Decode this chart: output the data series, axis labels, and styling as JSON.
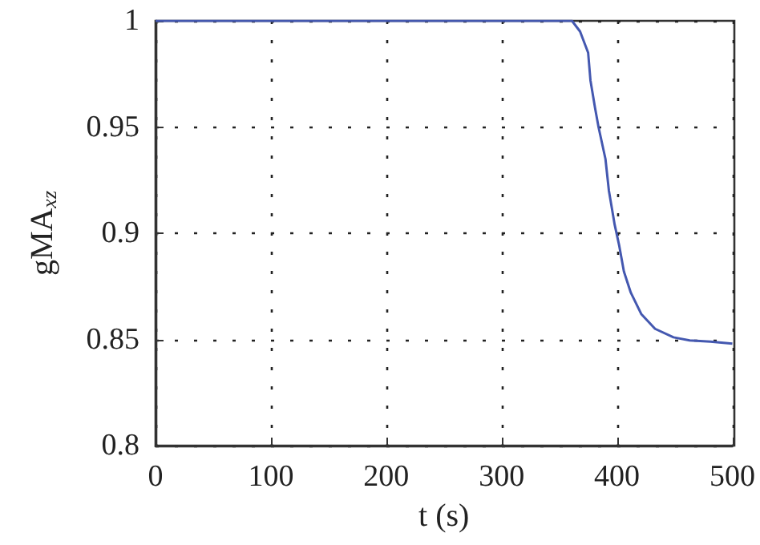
{
  "chart_data": {
    "type": "line",
    "xlabel": "t (s)",
    "ylabel": "gMA$_{xz}$",
    "x": [
      0,
      361,
      368,
      375,
      377,
      381,
      384,
      390,
      393,
      398,
      402,
      406,
      412,
      421,
      433,
      449,
      463,
      481,
      500
    ],
    "series": [
      {
        "color": "#4458b0",
        "values": [
          1,
          1,
          0.995,
          0.985,
          0.972,
          0.959,
          0.95,
          0.935,
          0.92,
          0.904,
          0.894,
          0.882,
          0.872,
          0.862,
          0.855,
          0.851,
          0.8495,
          0.849,
          0.848
        ]
      }
    ],
    "xlim": [
      0,
      500
    ],
    "xticks": [
      0,
      100,
      200,
      300,
      400,
      500
    ],
    "ylim": [
      0.8,
      1
    ],
    "yticks": [
      0.8,
      0.85,
      0.9,
      0.95,
      1
    ],
    "grid": true,
    "marker": "none",
    "line_style": "solid"
  }
}
